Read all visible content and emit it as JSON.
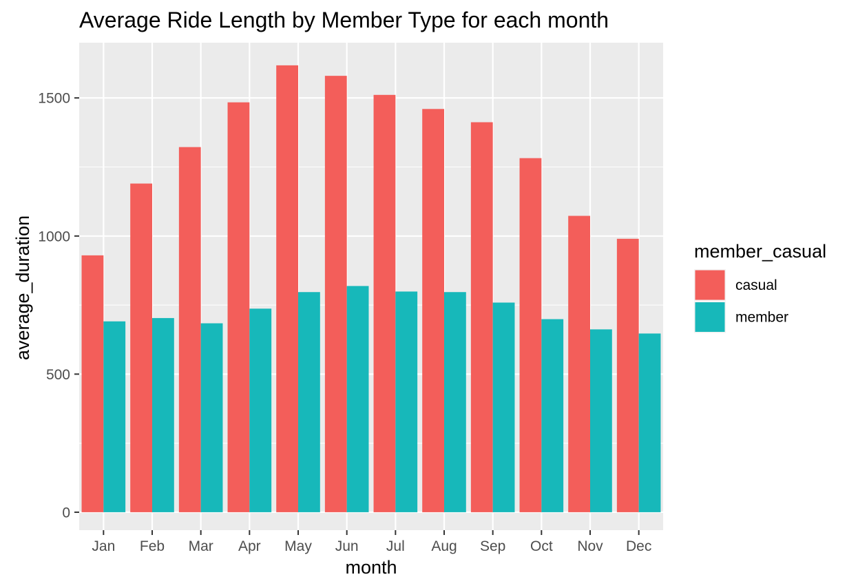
{
  "chart_data": {
    "type": "bar",
    "title": "Average Ride Length by Member Type for each month",
    "xlabel": "month",
    "ylabel": "average_duration",
    "categories": [
      "Jan",
      "Feb",
      "Mar",
      "Apr",
      "May",
      "Jun",
      "Jul",
      "Aug",
      "Sep",
      "Oct",
      "Nov",
      "Dec"
    ],
    "series": [
      {
        "name": "casual",
        "color": "#F35E5A",
        "values": [
          930,
          1190,
          1322,
          1484,
          1618,
          1580,
          1511,
          1460,
          1412,
          1282,
          1073,
          990
        ]
      },
      {
        "name": "member",
        "color": "#17B8BA",
        "values": [
          691,
          703,
          684,
          737,
          797,
          819,
          799,
          797,
          759,
          699,
          662,
          647
        ]
      }
    ],
    "ylim": [
      -65,
      1700
    ],
    "yticks": [
      0,
      500,
      1000,
      1500
    ],
    "ytick_labels": [
      "0",
      "500",
      "1000",
      "1500"
    ],
    "grid": true,
    "panel_background": "#EBEBEB",
    "legend": {
      "title": "member_casual",
      "position": "right",
      "labels": [
        "casual",
        "member"
      ]
    }
  }
}
